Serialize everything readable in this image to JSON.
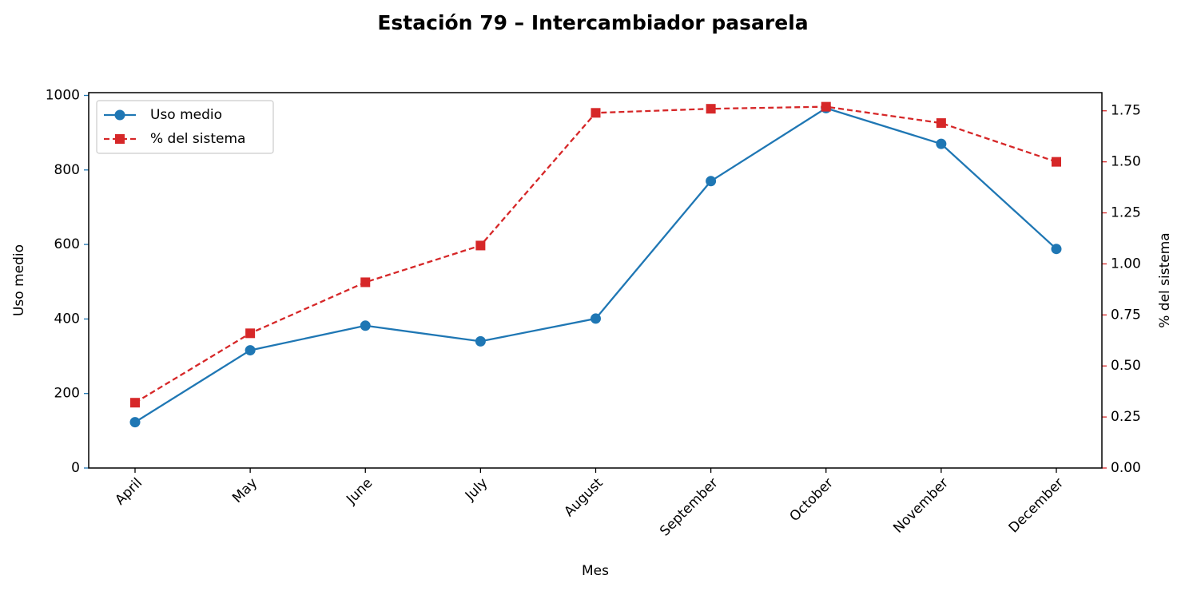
{
  "chart_data": {
    "type": "line",
    "title": "Estación 79 – Intercambiador pasarela",
    "xlabel": "Mes",
    "ylabel": "Uso medio",
    "y2label": "% del sistema",
    "categories": [
      "April",
      "May",
      "June",
      "July",
      "August",
      "September",
      "October",
      "November",
      "December"
    ],
    "series": [
      {
        "name": "Uso medio",
        "color": "#1f77b4",
        "marker": "circle",
        "dashed": false,
        "axis": "y",
        "values": [
          123,
          316,
          382,
          340,
          401,
          770,
          966,
          870,
          588
        ]
      },
      {
        "name": "% del sistema",
        "color": "#d62728",
        "marker": "square",
        "dashed": true,
        "axis": "y2",
        "values": [
          0.32,
          0.66,
          0.91,
          1.09,
          1.74,
          1.76,
          1.77,
          1.69,
          1.5
        ]
      }
    ],
    "ylim": [
      0,
      1007.5
    ],
    "yticks": [
      0,
      200,
      400,
      600,
      800,
      1000
    ],
    "y2lim": [
      0,
      1.839
    ],
    "y2ticks": [
      {
        "value": 0,
        "label": "0.00"
      },
      {
        "value": 0.25,
        "label": "0.25"
      },
      {
        "value": 0.5,
        "label": "0.50"
      },
      {
        "value": 0.75,
        "label": "0.75"
      },
      {
        "value": 1,
        "label": "1.00"
      },
      {
        "value": 1.25,
        "label": "1.25"
      },
      {
        "value": 1.5,
        "label": "1.50"
      },
      {
        "value": 1.75,
        "label": "1.75"
      }
    ],
    "grid": false,
    "legend": "upper left"
  }
}
